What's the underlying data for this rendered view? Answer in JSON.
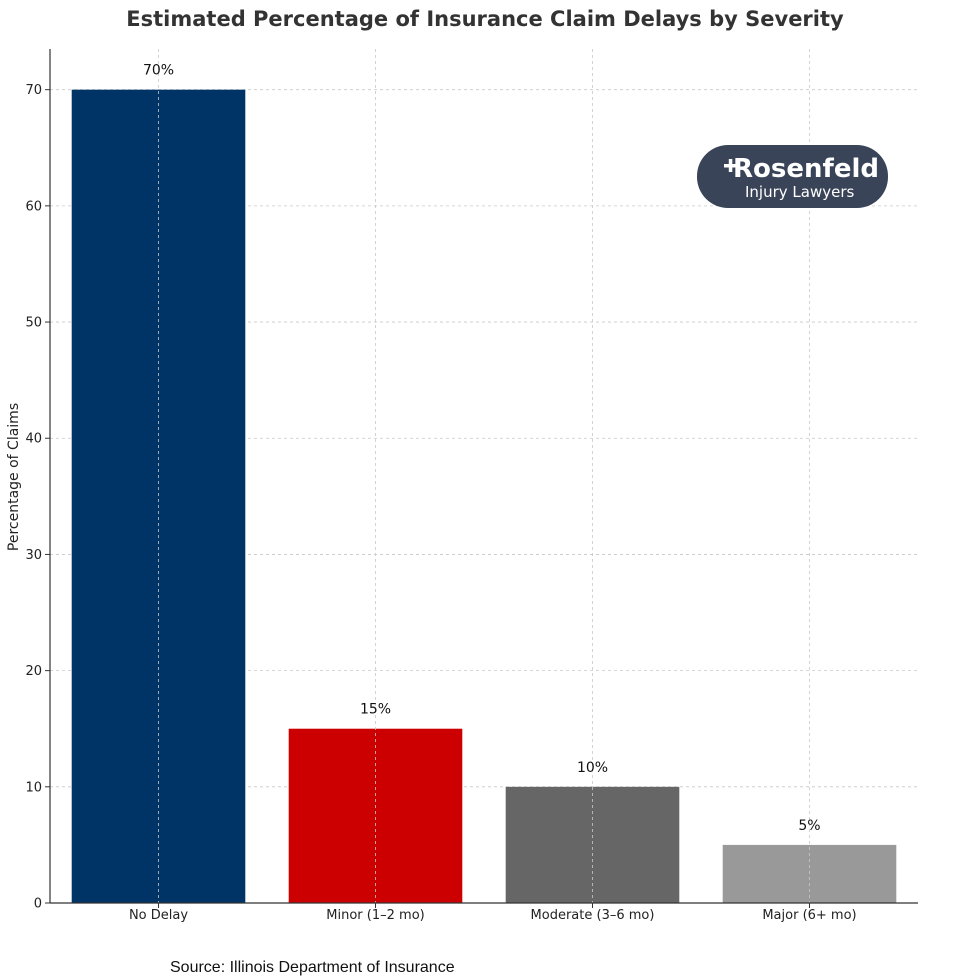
{
  "chart_data": {
    "type": "bar",
    "title": "Estimated Percentage of Insurance Claim Delays by Severity",
    "xlabel": "",
    "ylabel": "Percentage of Claims",
    "categories": [
      "No Delay",
      "Minor (1–2 mo)",
      "Moderate (3–6 mo)",
      "Major (6+ mo)"
    ],
    "values": [
      70,
      15,
      10,
      5
    ],
    "data_labels": [
      "70%",
      "15%",
      "10%",
      "5%"
    ],
    "colors": [
      "#003366",
      "#cc0000",
      "#666666",
      "#999999"
    ],
    "ylim": [
      0,
      73.5
    ],
    "yticks": [
      0,
      10,
      20,
      30,
      40,
      50,
      60,
      70
    ],
    "grid": true,
    "legend": "none"
  },
  "logo": {
    "name": "Rosenfeld",
    "tagline": "Injury Lawyers",
    "background": "#3a4459"
  },
  "source": "Source: Illinois Department of Insurance"
}
